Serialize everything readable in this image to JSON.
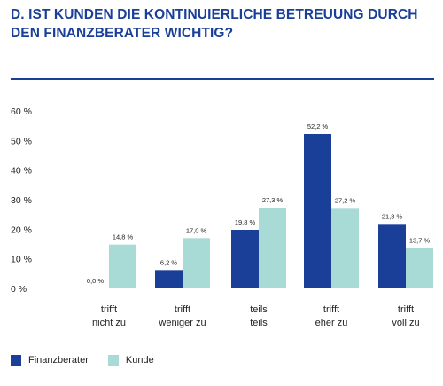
{
  "title": {
    "line1": "D. IST KUNDEN DIE KONTINUIERLICHE BETREUUNG DURCH",
    "line2": "DEN FINANZBERATER WICHTIG?"
  },
  "colors": {
    "title": "#1a3f98",
    "finanzberater": "#1a3f98",
    "kunde": "#a8dbd5",
    "axis_text": "#222222"
  },
  "chart_data": {
    "type": "bar",
    "title": "D. IST KUNDEN DIE KONTINUIERLICHE BETREUUNG DURCH DEN FINANZBERATER WICHTIG?",
    "xlabel": "",
    "ylabel": "",
    "ylim": [
      0,
      60
    ],
    "yticks": [
      "60 %",
      "50 %",
      "40 %",
      "30 %",
      "20 %",
      "10 %",
      "0 %"
    ],
    "ytick_values": [
      60,
      50,
      40,
      30,
      20,
      10,
      0
    ],
    "grid": false,
    "legend_position": "bottom-left",
    "categories": [
      [
        "trifft",
        "nicht zu"
      ],
      [
        "trifft",
        "weniger zu"
      ],
      [
        "teils",
        "teils"
      ],
      [
        "trifft",
        "eher zu"
      ],
      [
        "trifft",
        "voll zu"
      ]
    ],
    "series": [
      {
        "name": "Finanzberater",
        "color": "#1a3f98",
        "values": [
          0.0,
          6.2,
          19.8,
          52.2,
          21.8
        ],
        "labels": [
          "0,0 %",
          "6,2 %",
          "19,8 %",
          "52,2 %",
          "21,8 %"
        ]
      },
      {
        "name": "Kunde",
        "color": "#a8dbd5",
        "values": [
          14.8,
          17.0,
          27.3,
          27.2,
          13.7
        ],
        "labels": [
          "14,8 %",
          "17,0 %",
          "27,3 %",
          "27,2 %",
          "13,7 %"
        ]
      }
    ]
  },
  "legend": {
    "items": [
      "Finanzberater",
      "Kunde"
    ]
  }
}
